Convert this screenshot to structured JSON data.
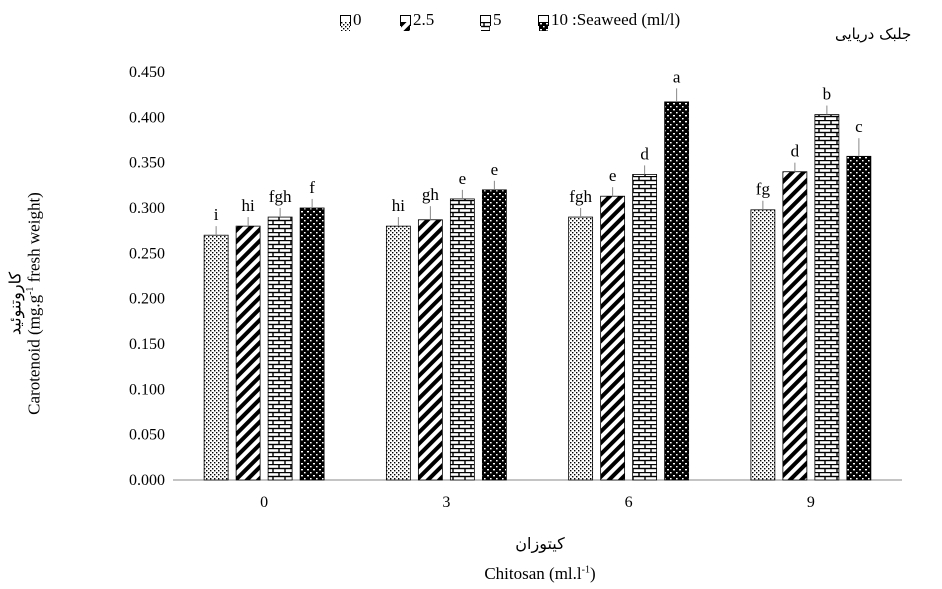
{
  "chart_data": {
    "type": "bar",
    "categories": [
      "0",
      "3",
      "6",
      "9"
    ],
    "legend_title": ":Seaweed (ml/l)",
    "legend_title_fa": "جلبک دریایی",
    "series": [
      {
        "name": "0",
        "values": [
          0.27,
          0.28,
          0.29,
          0.298
        ],
        "letters": [
          "i",
          "hi",
          "fgh",
          "fg"
        ],
        "pattern": "dots"
      },
      {
        "name": "2.5",
        "values": [
          0.28,
          0.287,
          0.313,
          0.34
        ],
        "letters": [
          "hi",
          "gh",
          "e",
          "d"
        ],
        "pattern": "diagonal"
      },
      {
        "name": "5",
        "values": [
          0.29,
          0.31,
          0.337,
          0.403
        ],
        "letters": [
          "fgh",
          "e",
          "d",
          "b"
        ],
        "pattern": "brick"
      },
      {
        "name": "10",
        "values": [
          0.3,
          0.32,
          0.417,
          0.357
        ],
        "letters": [
          "f",
          "e",
          "a",
          "c"
        ],
        "pattern": "dense"
      }
    ],
    "error": [
      [
        0.01,
        0.01,
        0.01,
        0.01
      ],
      [
        0.01,
        0.015,
        0.01,
        0.01
      ],
      [
        0.01,
        0.01,
        0.01,
        0.01
      ],
      [
        0.01,
        0.01,
        0.015,
        0.02
      ]
    ],
    "ylim": [
      0,
      0.45
    ],
    "yticks": [
      "0.000",
      "0.050",
      "0.100",
      "0.150",
      "0.200",
      "0.250",
      "0.300",
      "0.350",
      "0.400",
      "0.450"
    ],
    "ytick_values": [
      0,
      0.05,
      0.1,
      0.15,
      0.2,
      0.25,
      0.3,
      0.35,
      0.4,
      0.45
    ],
    "ylabel_en": "Carotenoid (mg.g",
    "ylabel_en_sup": "-1",
    "ylabel_en_tail": " fresh weight)",
    "ylabel_fa": "کاروتنوئید",
    "xlabel_en": "Chitosan (ml.l",
    "xlabel_en_sup": "-1",
    "xlabel_en_tail": ")",
    "xlabel_fa": "کیتوزان",
    "grid": false,
    "legend_position": "top"
  }
}
